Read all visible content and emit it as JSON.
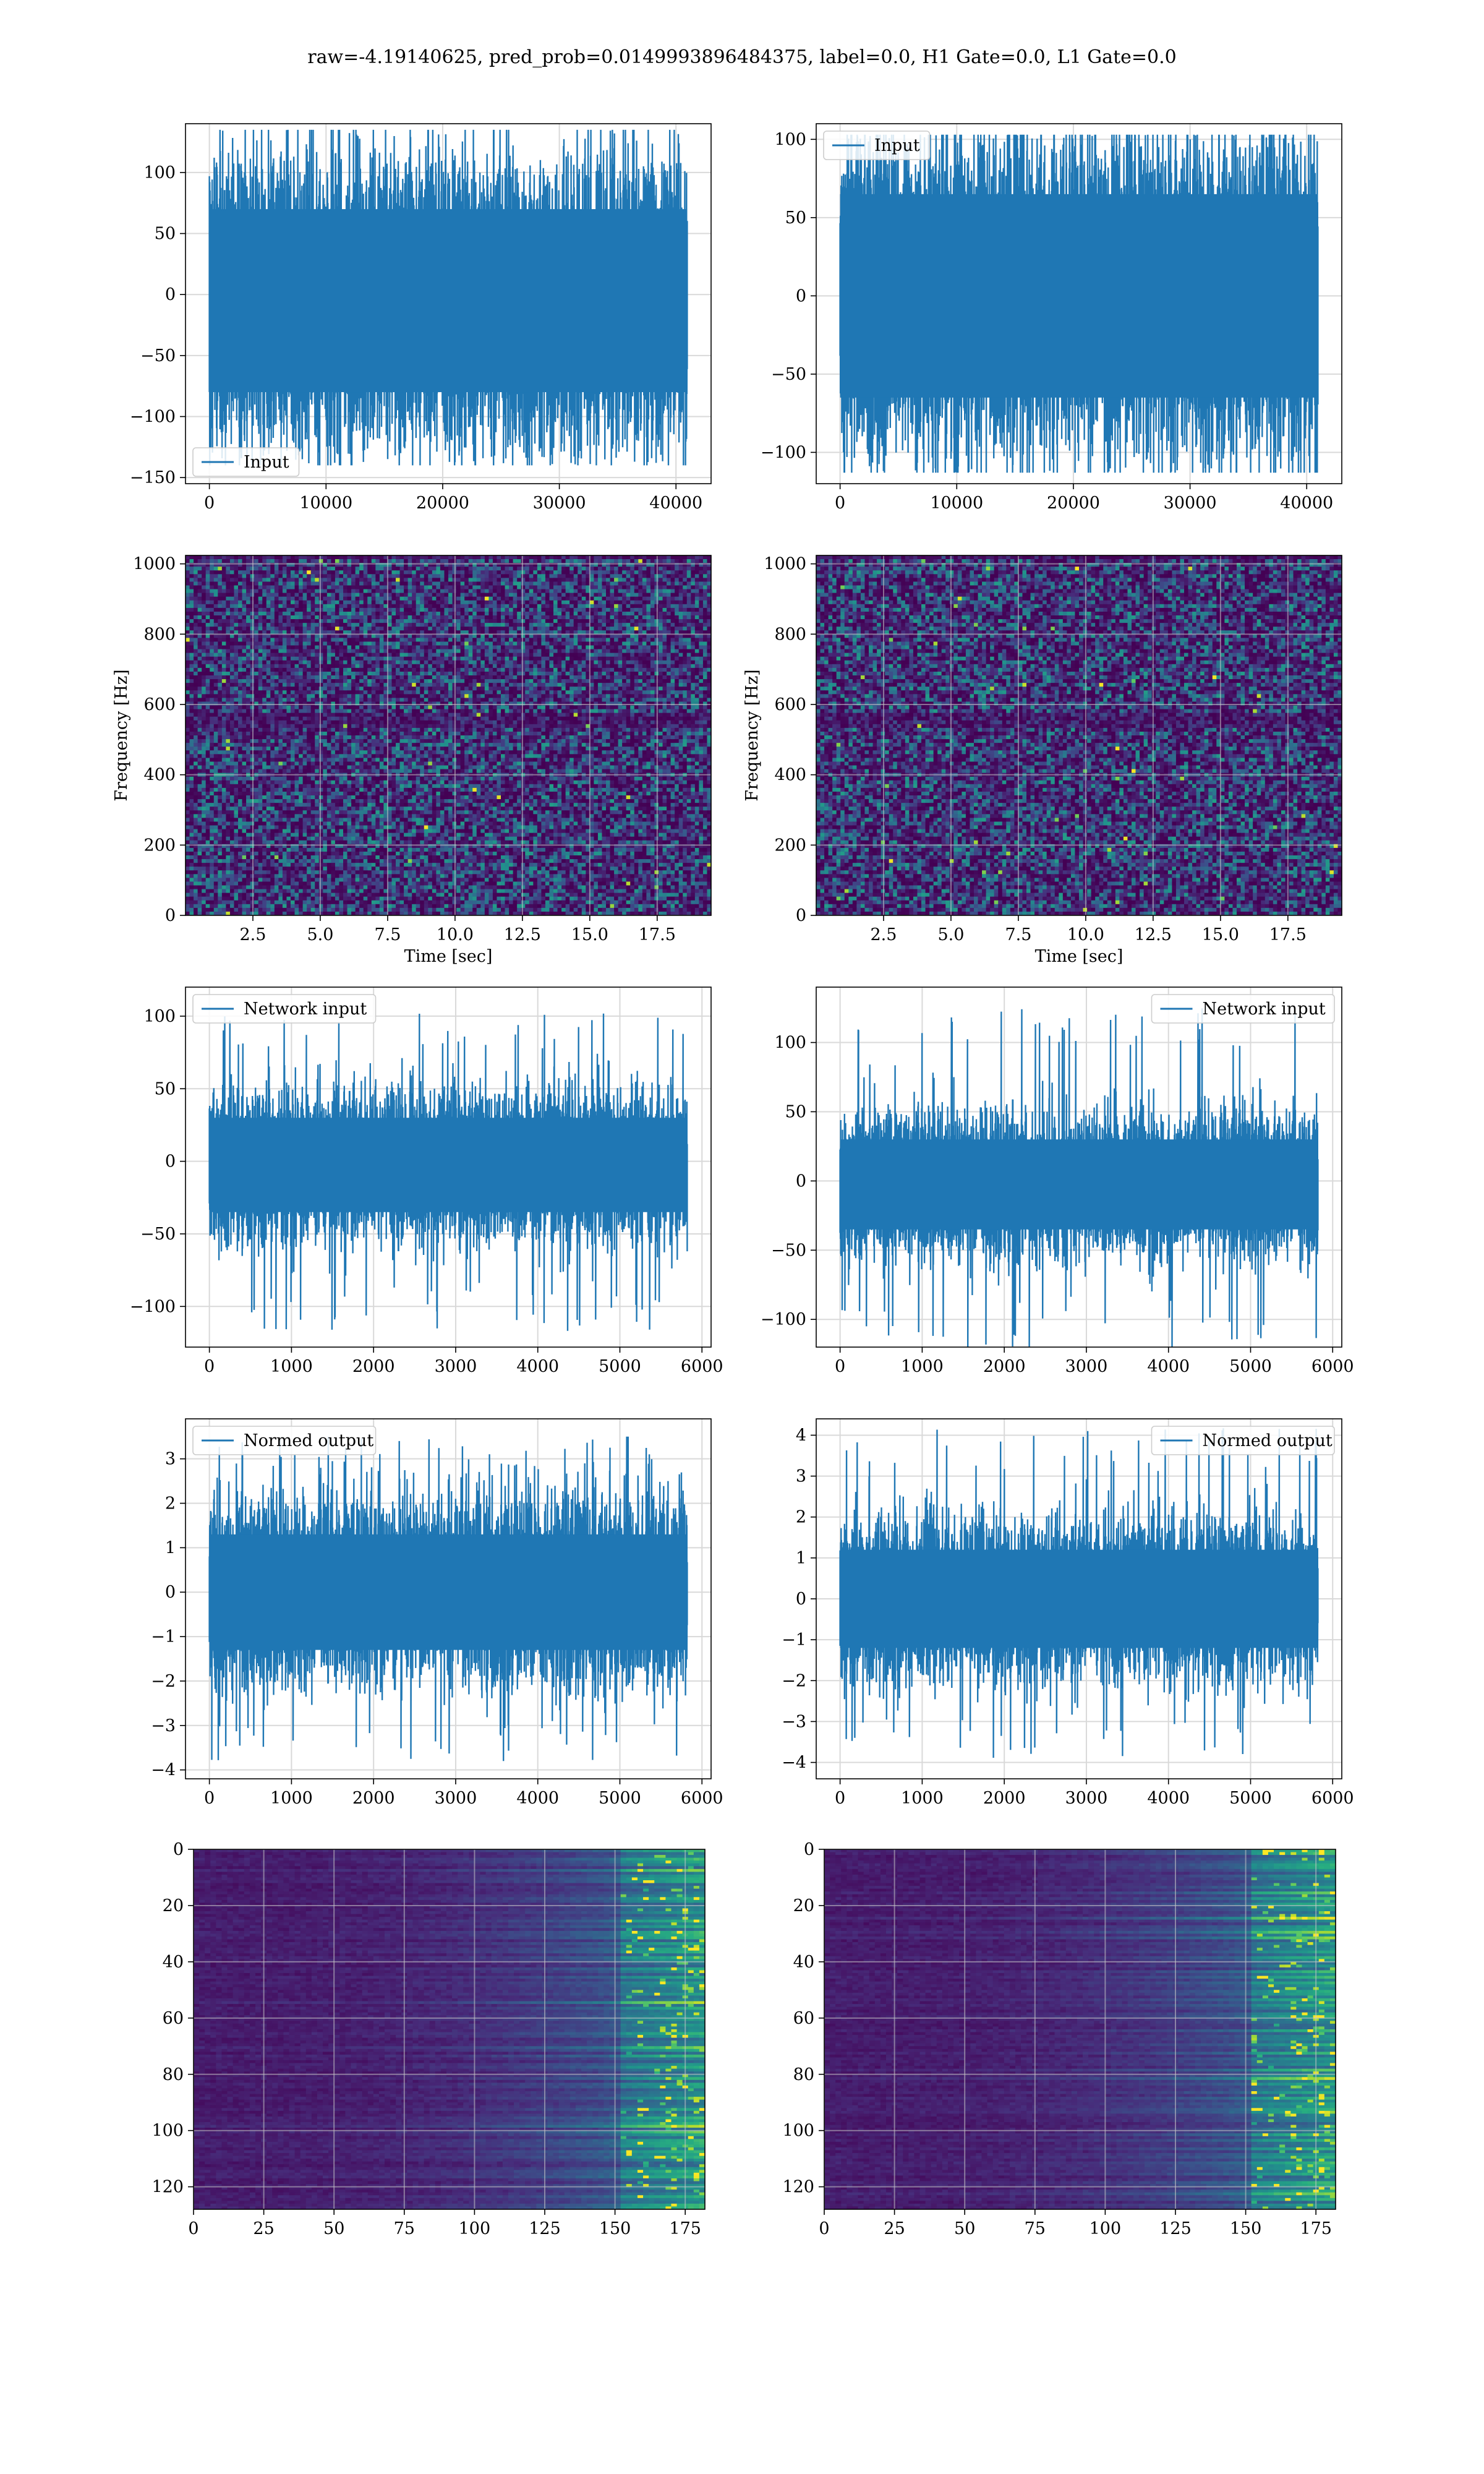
{
  "figure": {
    "title": "raw=-4.19140625, pred_prob=0.0149993896484375, label=0.0, H1 Gate=0.0, L1 Gate=0.0"
  },
  "colors": {
    "series": "#1f77b4",
    "grid": "#d9d9d9",
    "viridis": [
      "#440154",
      "#472d7b",
      "#3b528b",
      "#2c728e",
      "#21918c",
      "#28ae80",
      "#5ec962",
      "#addc30",
      "#fde725"
    ]
  },
  "chart_data": [
    {
      "id": "ts-input-left",
      "type": "line",
      "xlim": [
        -2048,
        43008
      ],
      "ylim": [
        -155,
        140
      ],
      "xticks": [
        0,
        10000,
        20000,
        30000,
        40000
      ],
      "xtick_labels": [
        "0",
        "10000",
        "20000",
        "30000",
        "40000"
      ],
      "yticks": [
        -150,
        -100,
        -50,
        0,
        50,
        100
      ],
      "ytick_labels": [
        "−150",
        "−100",
        "−50",
        "0",
        "50",
        "100"
      ],
      "series": [
        {
          "name": "Input",
          "x_range": [
            0,
            40960
          ],
          "band": [
            -80,
            70
          ],
          "peaks": [
            -140,
            135
          ]
        }
      ],
      "legend": "lower left",
      "grid": true,
      "xlabel": "",
      "ylabel": ""
    },
    {
      "id": "ts-input-right",
      "type": "line",
      "xlim": [
        -2048,
        43008
      ],
      "ylim": [
        -120,
        110
      ],
      "xticks": [
        0,
        10000,
        20000,
        30000,
        40000
      ],
      "xtick_labels": [
        "0",
        "10000",
        "20000",
        "30000",
        "40000"
      ],
      "yticks": [
        -100,
        -50,
        0,
        50,
        100
      ],
      "ytick_labels": [
        "−100",
        "−50",
        "0",
        "50",
        "100"
      ],
      "series": [
        {
          "name": "Input",
          "x_range": [
            0,
            40960
          ],
          "band": [
            -65,
            65
          ],
          "peaks": [
            -113,
            103
          ]
        }
      ],
      "legend": "upper left",
      "grid": true,
      "xlabel": "",
      "ylabel": ""
    },
    {
      "id": "spec-left",
      "type": "heatmap",
      "xlim": [
        0,
        19.5
      ],
      "ylim": [
        0,
        1024
      ],
      "xticks": [
        2.5,
        5,
        7.5,
        10,
        12.5,
        15,
        17.5
      ],
      "xtick_labels": [
        "2.5",
        "5.0",
        "7.5",
        "10.0",
        "12.5",
        "15.0",
        "17.5"
      ],
      "yticks": [
        0,
        200,
        400,
        600,
        800,
        1000
      ],
      "ytick_labels": [
        "0",
        "200",
        "400",
        "600",
        "800",
        "1000"
      ],
      "xlabel": "Time [sec]",
      "ylabel": "Frequency [Hz]",
      "colormap": "viridis",
      "grid": true
    },
    {
      "id": "spec-right",
      "type": "heatmap",
      "xlim": [
        0,
        19.5
      ],
      "ylim": [
        0,
        1024
      ],
      "xticks": [
        2.5,
        5,
        7.5,
        10,
        12.5,
        15,
        17.5
      ],
      "xtick_labels": [
        "2.5",
        "5.0",
        "7.5",
        "10.0",
        "12.5",
        "15.0",
        "17.5"
      ],
      "yticks": [
        0,
        200,
        400,
        600,
        800,
        1000
      ],
      "ytick_labels": [
        "0",
        "200",
        "400",
        "600",
        "800",
        "1000"
      ],
      "xlabel": "Time [sec]",
      "ylabel": "Frequency [Hz]",
      "colormap": "viridis",
      "grid": true
    },
    {
      "id": "ts-network-left",
      "type": "line",
      "xlim": [
        -291,
        6111
      ],
      "ylim": [
        -128,
        120
      ],
      "xticks": [
        0,
        1000,
        2000,
        3000,
        4000,
        5000,
        6000
      ],
      "xtick_labels": [
        "0",
        "1000",
        "2000",
        "3000",
        "4000",
        "5000",
        "6000"
      ],
      "yticks": [
        -100,
        -50,
        0,
        50,
        100
      ],
      "ytick_labels": [
        "−100",
        "−50",
        "0",
        "50",
        "100"
      ],
      "series": [
        {
          "name": "Network input",
          "x_range": [
            0,
            5820
          ],
          "band": [
            -35,
            30
          ],
          "peaks": [
            -117,
            103
          ]
        }
      ],
      "legend": "upper left",
      "grid": true,
      "xlabel": "",
      "ylabel": ""
    },
    {
      "id": "ts-network-right",
      "type": "line",
      "xlim": [
        -291,
        6111
      ],
      "ylim": [
        -120,
        140
      ],
      "xticks": [
        0,
        1000,
        2000,
        3000,
        4000,
        5000,
        6000
      ],
      "xtick_labels": [
        "0",
        "1000",
        "2000",
        "3000",
        "4000",
        "5000",
        "6000"
      ],
      "yticks": [
        -100,
        -50,
        0,
        50,
        100
      ],
      "ytick_labels": [
        "−100",
        "−50",
        "0",
        "50",
        "100"
      ],
      "series": [
        {
          "name": "Network input",
          "x_range": [
            0,
            5820
          ],
          "band": [
            -35,
            30
          ],
          "peaks": [
            -122,
            130
          ]
        }
      ],
      "legend": "upper right",
      "grid": true,
      "xlabel": "",
      "ylabel": ""
    },
    {
      "id": "ts-normed-left",
      "type": "line",
      "xlim": [
        -291,
        6111
      ],
      "ylim": [
        -4.2,
        3.9
      ],
      "xticks": [
        0,
        1000,
        2000,
        3000,
        4000,
        5000,
        6000
      ],
      "xtick_labels": [
        "0",
        "1000",
        "2000",
        "3000",
        "4000",
        "5000",
        "6000"
      ],
      "yticks": [
        -4,
        -3,
        -2,
        -1,
        0,
        1,
        2,
        3
      ],
      "ytick_labels": [
        "−4",
        "−3",
        "−2",
        "−1",
        "0",
        "1",
        "2",
        "3"
      ],
      "series": [
        {
          "name": "Normed output",
          "x_range": [
            0,
            5820
          ],
          "band": [
            -1.3,
            1.3
          ],
          "peaks": [
            -3.8,
            3.5
          ]
        }
      ],
      "legend": "upper left",
      "grid": true,
      "xlabel": "",
      "ylabel": ""
    },
    {
      "id": "ts-normed-right",
      "type": "line",
      "xlim": [
        -291,
        6111
      ],
      "ylim": [
        -4.4,
        4.4
      ],
      "xticks": [
        0,
        1000,
        2000,
        3000,
        4000,
        5000,
        6000
      ],
      "xtick_labels": [
        "0",
        "1000",
        "2000",
        "3000",
        "4000",
        "5000",
        "6000"
      ],
      "yticks": [
        -4,
        -3,
        -2,
        -1,
        0,
        1,
        2,
        3,
        4
      ],
      "ytick_labels": [
        "−4",
        "−3",
        "−2",
        "−1",
        "0",
        "1",
        "2",
        "3",
        "4"
      ],
      "series": [
        {
          "name": "Normed output",
          "x_range": [
            0,
            5820
          ],
          "band": [
            -1.2,
            1.2
          ],
          "peaks": [
            -3.9,
            4.2
          ]
        }
      ],
      "legend": "upper right",
      "grid": true,
      "xlabel": "",
      "ylabel": ""
    },
    {
      "id": "feat-left",
      "type": "heatmap",
      "xlim": [
        0,
        182
      ],
      "ylim": [
        128,
        0
      ],
      "xticks": [
        0,
        25,
        50,
        75,
        100,
        125,
        150,
        175
      ],
      "xtick_labels": [
        "0",
        "25",
        "50",
        "75",
        "100",
        "125",
        "150",
        "175"
      ],
      "yticks": [
        0,
        20,
        40,
        60,
        80,
        100,
        120
      ],
      "ytick_labels": [
        "0",
        "20",
        "40",
        "60",
        "80",
        "100",
        "120"
      ],
      "xlabel": "",
      "ylabel": "",
      "colormap": "viridis",
      "grid": true
    },
    {
      "id": "feat-right",
      "type": "heatmap",
      "xlim": [
        0,
        182
      ],
      "ylim": [
        128,
        0
      ],
      "xticks": [
        0,
        25,
        50,
        75,
        100,
        125,
        150,
        175
      ],
      "xtick_labels": [
        "0",
        "25",
        "50",
        "75",
        "100",
        "125",
        "150",
        "175"
      ],
      "yticks": [
        0,
        20,
        40,
        60,
        80,
        100,
        120
      ],
      "ytick_labels": [
        "0",
        "20",
        "40",
        "60",
        "80",
        "100",
        "120"
      ],
      "xlabel": "",
      "ylabel": "",
      "colormap": "viridis",
      "grid": true
    }
  ]
}
